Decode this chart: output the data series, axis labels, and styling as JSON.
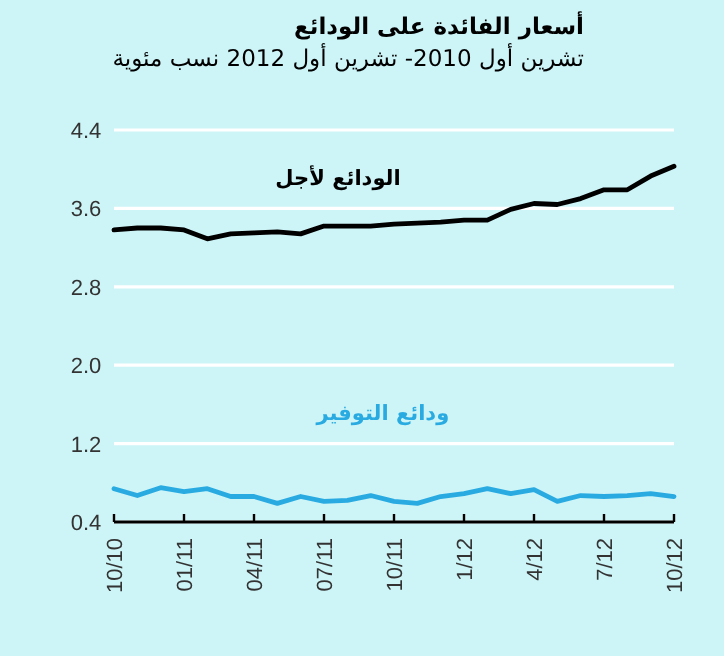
{
  "chart_data": {
    "type": "line",
    "title": "أسعار الفائدة على الودائع",
    "subtitle": "تشرين أول 2010- تشرين أول 2012 نسب مئوية",
    "categories": [
      "10/10",
      null,
      null,
      "01/11",
      null,
      null,
      "04/11",
      null,
      null,
      "07/11",
      null,
      null,
      "10/11",
      null,
      null,
      "1/12",
      null,
      null,
      "4/12",
      null,
      null,
      "7/12",
      null,
      null,
      "10/12"
    ],
    "series": [
      {
        "name": "الودائع لأجل",
        "color": "#000000",
        "values": [
          3.38,
          3.4,
          3.4,
          3.38,
          3.29,
          3.34,
          3.35,
          3.36,
          3.34,
          3.42,
          3.42,
          3.42,
          3.44,
          3.45,
          3.46,
          3.48,
          3.48,
          3.59,
          3.65,
          3.64,
          3.7,
          3.79,
          3.79,
          3.93,
          4.03
        ]
      },
      {
        "name": "ودائع التوفير",
        "color": "#29abe2",
        "values": [
          0.74,
          0.67,
          0.75,
          0.71,
          0.74,
          0.66,
          0.66,
          0.59,
          0.66,
          0.61,
          0.62,
          0.67,
          0.61,
          0.59,
          0.66,
          0.69,
          0.74,
          0.69,
          0.73,
          0.61,
          0.67,
          0.66,
          0.67,
          0.69,
          0.66
        ]
      }
    ],
    "ylim": [
      0.4,
      4.4
    ],
    "yticks": [
      0.4,
      1.2,
      {
        "value": 2,
        "label": "2.0"
      },
      2.8,
      3.6,
      4.4
    ],
    "grid": "y",
    "legend": false,
    "marker": "none",
    "line_style": "solid"
  }
}
